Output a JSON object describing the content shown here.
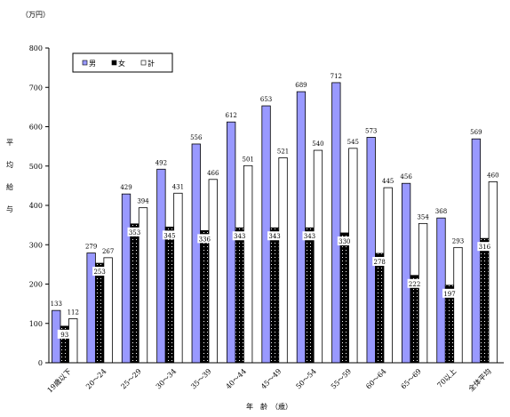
{
  "chart_data": {
    "type": "bar",
    "unit_label": "（万円）",
    "ylabel": "平均給与",
    "xlabel": "年　齢　（歳）",
    "ylim": [
      0,
      800
    ],
    "yticks": [
      0,
      100,
      200,
      300,
      400,
      500,
      600,
      700,
      800
    ],
    "categories": [
      "19歳以下",
      "20～24",
      "25～29",
      "30～34",
      "35～39",
      "40～44",
      "45～49",
      "50～54",
      "55～59",
      "60～64",
      "65～69",
      "70以上",
      "全体平均"
    ],
    "series": [
      {
        "name": "男",
        "values": [
          133,
          279,
          429,
          492,
          556,
          612,
          653,
          689,
          712,
          573,
          456,
          368,
          569
        ]
      },
      {
        "name": "女",
        "values": [
          93,
          253,
          353,
          345,
          336,
          343,
          343,
          343,
          330,
          278,
          222,
          197,
          316
        ]
      },
      {
        "name": "計",
        "values": [
          112,
          267,
          394,
          431,
          466,
          501,
          521,
          540,
          545,
          445,
          354,
          293,
          460
        ]
      }
    ],
    "legend": "top-left",
    "grid": false
  },
  "colors": {
    "male": "#9999ff",
    "female": "#000000",
    "total": "#ffffff"
  }
}
